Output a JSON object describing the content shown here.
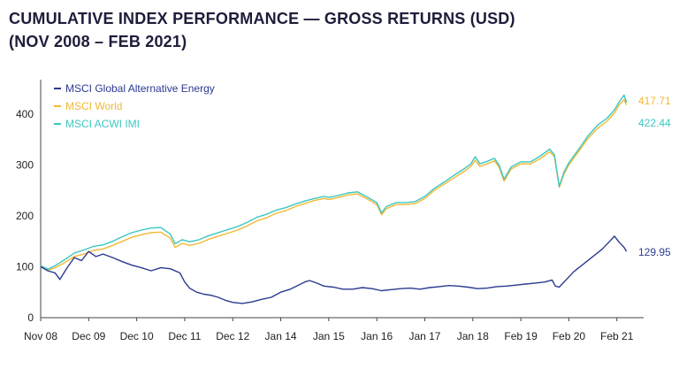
{
  "title": {
    "line1": "CUMULATIVE INDEX PERFORMANCE — GROSS RETURNS   (USD)",
    "line2": "(NOV 2008 – FEB 2021)"
  },
  "chart_data": {
    "type": "line",
    "ylim": [
      0,
      450
    ],
    "yticks": [
      0,
      100,
      200,
      300,
      400
    ],
    "xticks": [
      "Nov 08",
      "Dec 09",
      "Dec 10",
      "Dec 11",
      "Dec 12",
      "Jan 14",
      "Jan 15",
      "Jan 16",
      "Jan 17",
      "Jan 18",
      "Feb 19",
      "Feb 20",
      "Feb 21"
    ],
    "xrange": [
      0,
      12.3
    ],
    "legend_position": "top-left",
    "grid": false,
    "series": [
      {
        "name": "MSCI Global Alternative Energy",
        "color": "#2b3a8f",
        "end_label": "129.95",
        "points": [
          [
            0,
            100
          ],
          [
            0.15,
            92
          ],
          [
            0.3,
            88
          ],
          [
            0.4,
            75
          ],
          [
            0.55,
            98
          ],
          [
            0.7,
            118
          ],
          [
            0.85,
            112
          ],
          [
            1.0,
            130
          ],
          [
            1.15,
            120
          ],
          [
            1.3,
            125
          ],
          [
            1.5,
            118
          ],
          [
            1.7,
            110
          ],
          [
            1.9,
            103
          ],
          [
            2.1,
            98
          ],
          [
            2.3,
            92
          ],
          [
            2.5,
            98
          ],
          [
            2.7,
            96
          ],
          [
            2.9,
            88
          ],
          [
            3.0,
            70
          ],
          [
            3.1,
            58
          ],
          [
            3.25,
            50
          ],
          [
            3.4,
            46
          ],
          [
            3.55,
            44
          ],
          [
            3.7,
            40
          ],
          [
            3.85,
            34
          ],
          [
            4.0,
            30
          ],
          [
            4.2,
            28
          ],
          [
            4.4,
            31
          ],
          [
            4.6,
            36
          ],
          [
            4.8,
            40
          ],
          [
            5.0,
            50
          ],
          [
            5.2,
            56
          ],
          [
            5.35,
            63
          ],
          [
            5.5,
            70
          ],
          [
            5.6,
            73
          ],
          [
            5.75,
            68
          ],
          [
            5.9,
            62
          ],
          [
            6.1,
            60
          ],
          [
            6.3,
            56
          ],
          [
            6.5,
            56
          ],
          [
            6.7,
            59
          ],
          [
            6.9,
            57
          ],
          [
            7.1,
            53
          ],
          [
            7.3,
            55
          ],
          [
            7.5,
            57
          ],
          [
            7.7,
            58
          ],
          [
            7.9,
            56
          ],
          [
            8.1,
            59
          ],
          [
            8.3,
            61
          ],
          [
            8.5,
            63
          ],
          [
            8.7,
            62
          ],
          [
            8.9,
            60
          ],
          [
            9.1,
            57
          ],
          [
            9.3,
            58
          ],
          [
            9.5,
            61
          ],
          [
            9.7,
            62
          ],
          [
            9.9,
            64
          ],
          [
            10.1,
            66
          ],
          [
            10.3,
            68
          ],
          [
            10.5,
            70
          ],
          [
            10.65,
            74
          ],
          [
            10.72,
            62
          ],
          [
            10.8,
            60
          ],
          [
            10.95,
            75
          ],
          [
            11.1,
            90
          ],
          [
            11.3,
            105
          ],
          [
            11.5,
            120
          ],
          [
            11.7,
            135
          ],
          [
            11.85,
            150
          ],
          [
            11.95,
            160
          ],
          [
            12.05,
            148
          ],
          [
            12.15,
            138
          ],
          [
            12.2,
            129.95
          ]
        ]
      },
      {
        "name": "MSCI World",
        "color": "#f2b935",
        "end_label": "417.71",
        "points": [
          [
            0,
            100
          ],
          [
            0.15,
            93
          ],
          [
            0.3,
            98
          ],
          [
            0.5,
            108
          ],
          [
            0.7,
            120
          ],
          [
            0.9,
            125
          ],
          [
            1.1,
            132
          ],
          [
            1.3,
            135
          ],
          [
            1.5,
            142
          ],
          [
            1.7,
            150
          ],
          [
            1.9,
            158
          ],
          [
            2.1,
            163
          ],
          [
            2.3,
            167
          ],
          [
            2.5,
            168
          ],
          [
            2.7,
            156
          ],
          [
            2.8,
            138
          ],
          [
            2.95,
            146
          ],
          [
            3.1,
            142
          ],
          [
            3.3,
            146
          ],
          [
            3.5,
            154
          ],
          [
            3.7,
            160
          ],
          [
            3.9,
            166
          ],
          [
            4.1,
            172
          ],
          [
            4.3,
            180
          ],
          [
            4.5,
            190
          ],
          [
            4.7,
            196
          ],
          [
            4.9,
            205
          ],
          [
            5.1,
            210
          ],
          [
            5.3,
            218
          ],
          [
            5.5,
            224
          ],
          [
            5.7,
            230
          ],
          [
            5.9,
            234
          ],
          [
            6.0,
            232
          ],
          [
            6.2,
            236
          ],
          [
            6.4,
            241
          ],
          [
            6.6,
            243
          ],
          [
            6.8,
            233
          ],
          [
            7.0,
            222
          ],
          [
            7.1,
            202
          ],
          [
            7.2,
            214
          ],
          [
            7.4,
            222
          ],
          [
            7.6,
            222
          ],
          [
            7.8,
            224
          ],
          [
            8.0,
            234
          ],
          [
            8.2,
            250
          ],
          [
            8.4,
            262
          ],
          [
            8.6,
            274
          ],
          [
            8.8,
            286
          ],
          [
            8.95,
            296
          ],
          [
            9.05,
            309
          ],
          [
            9.15,
            297
          ],
          [
            9.3,
            302
          ],
          [
            9.45,
            308
          ],
          [
            9.55,
            295
          ],
          [
            9.65,
            268
          ],
          [
            9.8,
            292
          ],
          [
            10.0,
            302
          ],
          [
            10.2,
            302
          ],
          [
            10.4,
            312
          ],
          [
            10.6,
            326
          ],
          [
            10.7,
            316
          ],
          [
            10.8,
            256
          ],
          [
            10.9,
            282
          ],
          [
            11.0,
            300
          ],
          [
            11.2,
            326
          ],
          [
            11.4,
            352
          ],
          [
            11.6,
            372
          ],
          [
            11.8,
            386
          ],
          [
            11.95,
            402
          ],
          [
            12.05,
            418
          ],
          [
            12.15,
            428
          ],
          [
            12.2,
            417.71
          ]
        ]
      },
      {
        "name": "MSCI ACWI IMI",
        "color": "#3cc7c0",
        "end_label": "422.44",
        "points": [
          [
            0,
            102
          ],
          [
            0.15,
            95
          ],
          [
            0.3,
            102
          ],
          [
            0.5,
            114
          ],
          [
            0.7,
            127
          ],
          [
            0.9,
            133
          ],
          [
            1.1,
            140
          ],
          [
            1.3,
            143
          ],
          [
            1.5,
            150
          ],
          [
            1.7,
            159
          ],
          [
            1.9,
            167
          ],
          [
            2.1,
            172
          ],
          [
            2.3,
            176
          ],
          [
            2.5,
            177
          ],
          [
            2.7,
            164
          ],
          [
            2.8,
            145
          ],
          [
            2.95,
            153
          ],
          [
            3.1,
            149
          ],
          [
            3.3,
            153
          ],
          [
            3.5,
            161
          ],
          [
            3.7,
            167
          ],
          [
            3.9,
            173
          ],
          [
            4.1,
            179
          ],
          [
            4.3,
            187
          ],
          [
            4.5,
            197
          ],
          [
            4.7,
            203
          ],
          [
            4.9,
            211
          ],
          [
            5.1,
            216
          ],
          [
            5.3,
            223
          ],
          [
            5.5,
            229
          ],
          [
            5.7,
            234
          ],
          [
            5.9,
            238
          ],
          [
            6.0,
            236
          ],
          [
            6.2,
            240
          ],
          [
            6.4,
            245
          ],
          [
            6.6,
            247
          ],
          [
            6.8,
            237
          ],
          [
            7.0,
            226
          ],
          [
            7.1,
            206
          ],
          [
            7.2,
            218
          ],
          [
            7.4,
            226
          ],
          [
            7.6,
            226
          ],
          [
            7.8,
            228
          ],
          [
            8.0,
            238
          ],
          [
            8.2,
            254
          ],
          [
            8.4,
            266
          ],
          [
            8.6,
            279
          ],
          [
            8.8,
            291
          ],
          [
            8.95,
            301
          ],
          [
            9.05,
            316
          ],
          [
            9.15,
            302
          ],
          [
            9.3,
            307
          ],
          [
            9.45,
            313
          ],
          [
            9.55,
            299
          ],
          [
            9.65,
            272
          ],
          [
            9.8,
            296
          ],
          [
            10.0,
            306
          ],
          [
            10.2,
            306
          ],
          [
            10.4,
            317
          ],
          [
            10.6,
            331
          ],
          [
            10.7,
            320
          ],
          [
            10.8,
            258
          ],
          [
            10.9,
            286
          ],
          [
            11.0,
            304
          ],
          [
            11.2,
            330
          ],
          [
            11.4,
            357
          ],
          [
            11.6,
            378
          ],
          [
            11.8,
            392
          ],
          [
            11.95,
            408
          ],
          [
            12.05,
            424
          ],
          [
            12.15,
            437
          ],
          [
            12.2,
            422.44
          ]
        ]
      }
    ]
  }
}
